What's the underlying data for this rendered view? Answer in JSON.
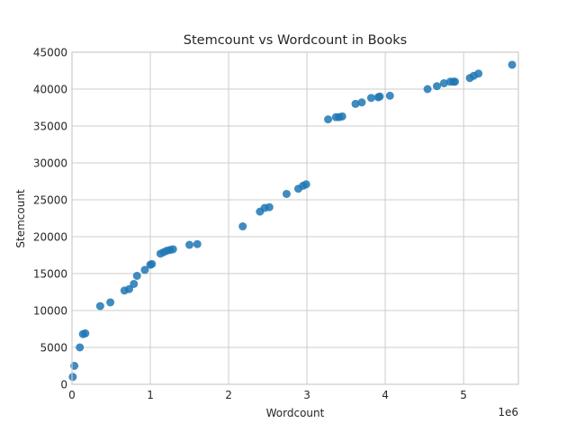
{
  "chart_data": {
    "type": "scatter",
    "title": "Stemcount vs Wordcount in Books",
    "xlabel": "Wordcount",
    "ylabel": "Stemcount",
    "x_offset_label": "1e6",
    "xlim": [
      0,
      5700000
    ],
    "ylim": [
      0,
      45000
    ],
    "x_ticks": [
      0,
      1000000,
      2000000,
      3000000,
      4000000,
      5000000
    ],
    "x_tick_labels": [
      "0",
      "1",
      "2",
      "3",
      "4",
      "5"
    ],
    "y_ticks": [
      0,
      5000,
      10000,
      15000,
      20000,
      25000,
      30000,
      35000,
      40000,
      45000
    ],
    "y_tick_labels": [
      "0",
      "5000",
      "10000",
      "15000",
      "20000",
      "25000",
      "30000",
      "35000",
      "40000",
      "45000"
    ],
    "grid": true,
    "point_color": "#1f77b4",
    "series": [
      {
        "x": [
          10000,
          30000,
          100000,
          140000,
          170000,
          360000,
          490000,
          670000,
          730000,
          790000,
          830000,
          930000,
          1000000,
          1020000,
          1130000,
          1170000,
          1210000,
          1250000,
          1290000,
          1500000,
          1600000,
          2180000,
          2400000,
          2460000,
          2520000,
          2740000,
          2890000,
          2950000,
          2990000,
          3270000,
          3370000,
          3410000,
          3450000,
          3620000,
          3700000,
          3820000,
          3910000,
          3930000,
          4060000,
          4540000,
          4660000,
          4750000,
          4830000,
          4870000,
          4890000,
          5080000,
          5130000,
          5190000,
          5620000
        ],
        "y": [
          1000,
          2500,
          5000,
          6800,
          6900,
          10600,
          11100,
          12700,
          12900,
          13600,
          14700,
          15500,
          16200,
          16300,
          17700,
          17900,
          18100,
          18200,
          18300,
          18900,
          19000,
          21400,
          23400,
          23900,
          24000,
          25800,
          26500,
          26900,
          27100,
          35900,
          36200,
          36200,
          36300,
          38000,
          38200,
          38800,
          38900,
          39000,
          39100,
          40000,
          40400,
          40800,
          41000,
          41000,
          41000,
          41500,
          41800,
          42100,
          43300
        ]
      }
    ]
  }
}
